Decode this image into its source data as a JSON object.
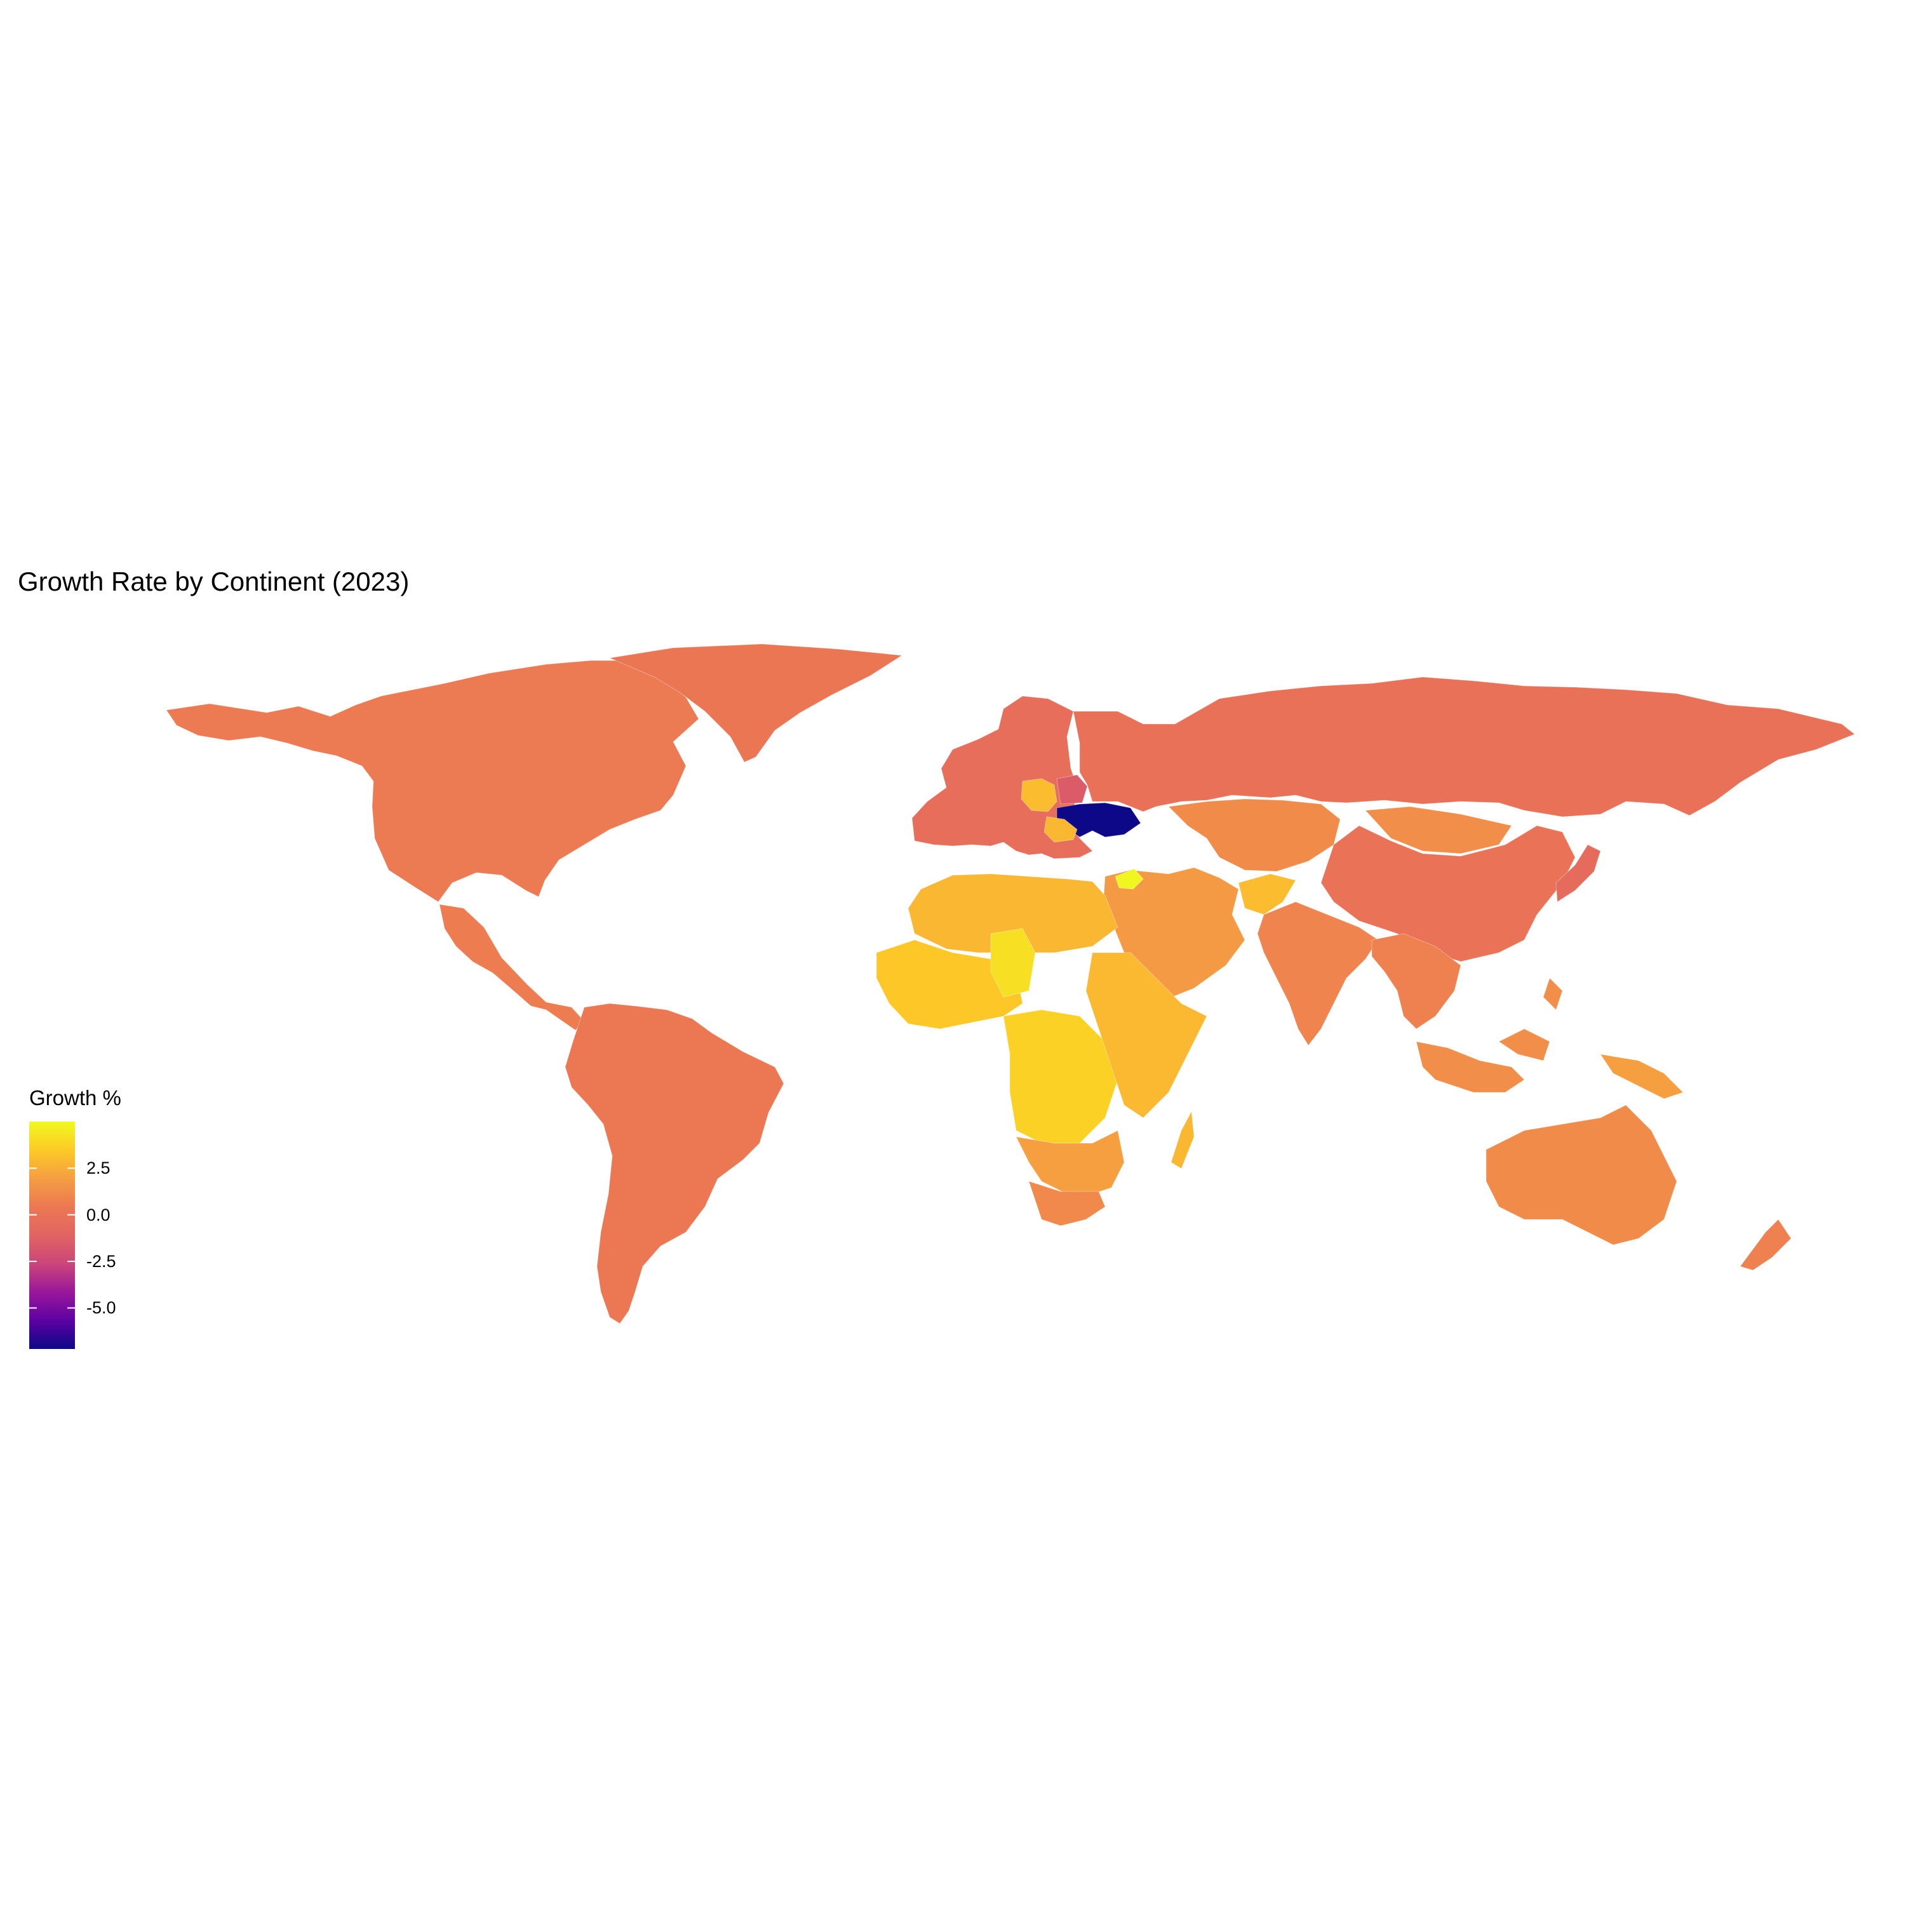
{
  "title": "Growth Rate by Continent (2023)",
  "legend": {
    "title": "Growth %",
    "ticks": [
      "2.5",
      "0.0",
      "-2.5",
      "-5.0"
    ],
    "tick_values": [
      2.5,
      0.0,
      -2.5,
      -5.0
    ],
    "range": [
      -7.2,
      5.0
    ],
    "palette": "plasma",
    "colors": [
      "#0d0887",
      "#5b02a3",
      "#9a179b",
      "#cb4679",
      "#e16462",
      "#ec7853",
      "#f59e42",
      "#fdca26",
      "#f0f921"
    ]
  },
  "map_data": {
    "type": "choropleth",
    "projection": "equirectangular",
    "regions": [
      {
        "name": "North America",
        "value": 0.5
      },
      {
        "name": "Greenland",
        "value": 0.3
      },
      {
        "name": "Central America",
        "value": 0.6
      },
      {
        "name": "South America",
        "value": 0.4
      },
      {
        "name": "Europe",
        "value": -0.3
      },
      {
        "name": "Poland",
        "value": 3.0
      },
      {
        "name": "Belarus",
        "value": -1.5
      },
      {
        "name": "Ukraine",
        "value": -7.2
      },
      {
        "name": "Romania",
        "value": 2.8
      },
      {
        "name": "Syria",
        "value": 4.9
      },
      {
        "name": "Russia",
        "value": -0.1
      },
      {
        "name": "Central Asia",
        "value": 1.2
      },
      {
        "name": "Mongolia",
        "value": 1.3
      },
      {
        "name": "China",
        "value": 0.0
      },
      {
        "name": "Japan",
        "value": -0.6
      },
      {
        "name": "Middle East",
        "value": 1.8
      },
      {
        "name": "Afghanistan",
        "value": 3.0
      },
      {
        "name": "India",
        "value": 0.9
      },
      {
        "name": "Southeast Asia",
        "value": 0.8
      },
      {
        "name": "Maritime Southeast Asia",
        "value": 1.3
      },
      {
        "name": "North Africa",
        "value": 2.8
      },
      {
        "name": "West Africa",
        "value": 3.4
      },
      {
        "name": "Central Africa",
        "value": 3.7
      },
      {
        "name": "Chad",
        "value": 4.2
      },
      {
        "name": "East Africa",
        "value": 2.9
      },
      {
        "name": "Southern Africa",
        "value": 2.0
      },
      {
        "name": "South Africa",
        "value": 1.1
      },
      {
        "name": "Madagascar",
        "value": 2.8
      },
      {
        "name": "Australia",
        "value": 1.2
      },
      {
        "name": "New Zealand",
        "value": 0.8
      },
      {
        "name": "Papua New Guinea",
        "value": 2.0
      }
    ]
  }
}
